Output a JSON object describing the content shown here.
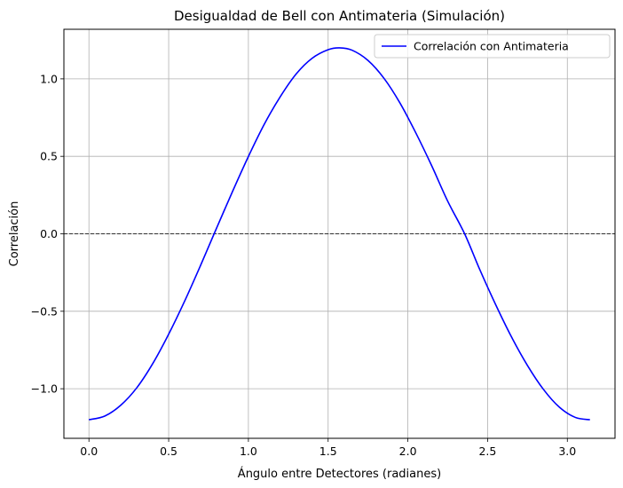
{
  "chart_data": {
    "type": "line",
    "title": "Desigualdad de Bell con Antimateria (Simulación)",
    "xlabel": "Ángulo entre Detectores (radianes)",
    "ylabel": "Correlación",
    "xlim": [
      -0.157,
      3.299
    ],
    "ylim": [
      -1.32,
      1.32
    ],
    "xticks": [
      0.0,
      0.5,
      1.0,
      1.5,
      2.0,
      2.5,
      3.0
    ],
    "xtick_labels": [
      "0.0",
      "0.5",
      "1.0",
      "1.5",
      "2.0",
      "2.5",
      "3.0"
    ],
    "yticks": [
      -1.0,
      -0.5,
      0.0,
      0.5,
      1.0
    ],
    "ytick_labels": [
      "−1.0",
      "−0.5",
      "0.0",
      "0.5",
      "1.0"
    ],
    "grid": true,
    "legend_position": "top-right",
    "reference_line": {
      "y": 0,
      "style": "dashed",
      "color": "#000000"
    },
    "series": [
      {
        "name": "Correlación con Antimateria",
        "color": "#0000ff",
        "x": [
          0.0,
          0.1,
          0.2,
          0.3,
          0.4,
          0.5,
          0.6,
          0.7,
          0.785,
          0.9,
          1.0,
          1.1,
          1.2,
          1.3,
          1.4,
          1.5,
          1.571,
          1.65,
          1.75,
          1.85,
          1.95,
          2.05,
          2.15,
          2.25,
          2.356,
          2.45,
          2.55,
          2.65,
          2.75,
          2.85,
          2.95,
          3.05,
          3.1416
        ],
        "y": [
          -1.2,
          -1.176,
          -1.106,
          -0.994,
          -0.838,
          -0.648,
          -0.435,
          -0.204,
          0.0,
          0.272,
          0.499,
          0.708,
          0.885,
          1.032,
          1.133,
          1.188,
          1.2,
          1.185,
          1.119,
          1.004,
          0.845,
          0.651,
          0.438,
          0.21,
          0.0,
          -0.229,
          -0.456,
          -0.666,
          -0.85,
          -1.004,
          -1.119,
          -1.185,
          -1.2
        ]
      }
    ]
  }
}
